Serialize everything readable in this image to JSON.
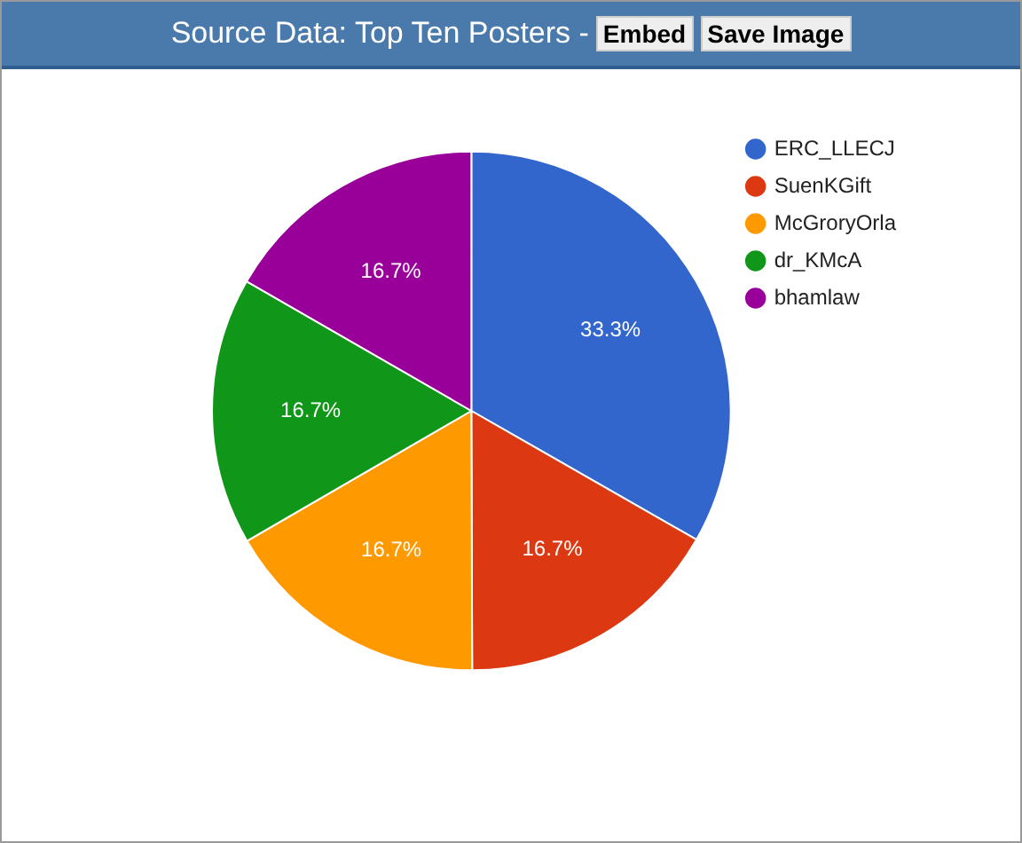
{
  "chart_data": {
    "type": "pie",
    "title": "Source Data: Top Ten Posters -",
    "annotations": [
      "Embed",
      "Save Image"
    ],
    "categories": [
      "ERC_LLECJ",
      "SuenKGift",
      "McGroryOrla",
      "dr_KMcA",
      "bhamlaw"
    ],
    "values": [
      33.3,
      16.7,
      16.7,
      16.7,
      16.7
    ],
    "colors": [
      "#3366cc",
      "#dc3912",
      "#ff9900",
      "#109618",
      "#990099"
    ],
    "value_labels": [
      "33.3%",
      "16.7%",
      "16.7%",
      "16.7%",
      "16.7%"
    ],
    "legend": "right"
  }
}
